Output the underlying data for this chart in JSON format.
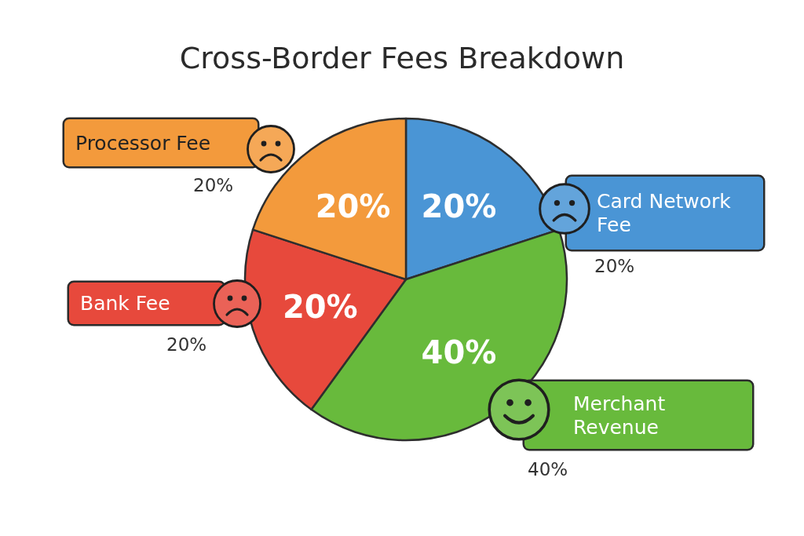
{
  "chart_data": {
    "type": "pie",
    "title": "Cross-Border Fees Breakdown",
    "categories": [
      "Card Network Fee",
      "Merchant Revenue",
      "Bank Fee",
      "Processor Fee"
    ],
    "values": [
      20,
      40,
      20,
      20
    ],
    "colors": [
      "#4a95d5",
      "#68ba3c",
      "#e7493c",
      "#f39a3c"
    ],
    "value_labels": [
      "20%",
      "40%",
      "20%",
      "20%"
    ]
  }
}
